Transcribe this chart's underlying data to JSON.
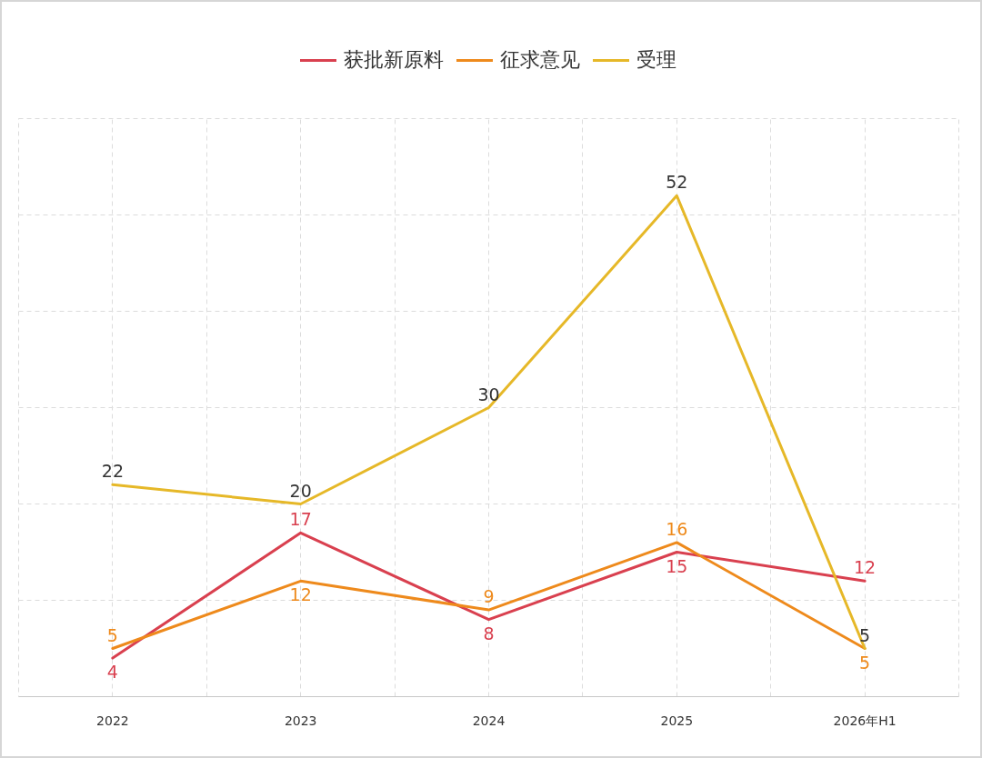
{
  "chart_data": {
    "type": "line",
    "categories": [
      "2022",
      "2023",
      "2024",
      "2025",
      "2026年H1"
    ],
    "series": [
      {
        "name": "获批新原料",
        "color": "#d9404f",
        "values": [
          4,
          17,
          8,
          15,
          12
        ]
      },
      {
        "name": "征求意见",
        "color": "#ee8a1c",
        "values": [
          5,
          12,
          9,
          16,
          5
        ]
      },
      {
        "name": "受理",
        "color": "#e6b828",
        "values": [
          22,
          20,
          30,
          52,
          5
        ]
      }
    ],
    "ylim": [
      0,
      60
    ],
    "yticks": [
      {
        "value": 0,
        "label": null
      },
      {
        "value": 10,
        "label": null
      },
      {
        "value": 20,
        "label": null
      },
      {
        "value": 30,
        "label": null
      },
      {
        "value": 40,
        "label": null
      },
      {
        "value": 50,
        "label": null
      }
    ],
    "tick_labels": "x",
    "grid": true,
    "legend": "top",
    "data_labels": true,
    "line_style": "solid"
  }
}
